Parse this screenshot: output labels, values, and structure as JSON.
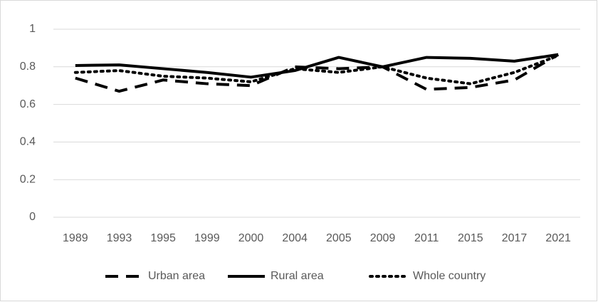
{
  "chart_data": {
    "type": "line",
    "categories": [
      "1989",
      "1993",
      "1995",
      "1999",
      "2000",
      "2004",
      "2005",
      "2009",
      "2011",
      "2015",
      "2017",
      "2021"
    ],
    "series": [
      {
        "name": "Urban area",
        "color": "#000000",
        "line_style": "dashed",
        "values": [
          0.74,
          0.67,
          0.73,
          0.71,
          0.7,
          0.8,
          0.79,
          0.8,
          0.68,
          0.69,
          0.73,
          0.865
        ]
      },
      {
        "name": "Rural area",
        "color": "#000000",
        "line_style": "solid",
        "values": [
          0.807,
          0.81,
          0.79,
          0.77,
          0.745,
          0.78,
          0.85,
          0.8,
          0.85,
          0.845,
          0.83,
          0.865
        ]
      },
      {
        "name": "Whole country",
        "color": "#000000",
        "line_style": "dotted",
        "values": [
          0.77,
          0.78,
          0.75,
          0.74,
          0.72,
          0.79,
          0.77,
          0.8,
          0.74,
          0.71,
          0.77,
          0.86
        ]
      }
    ],
    "ylim": [
      0,
      1
    ],
    "yticks": [
      0,
      0.2,
      0.4,
      0.6,
      0.8,
      1
    ],
    "grid": true,
    "legend": "bottom"
  }
}
